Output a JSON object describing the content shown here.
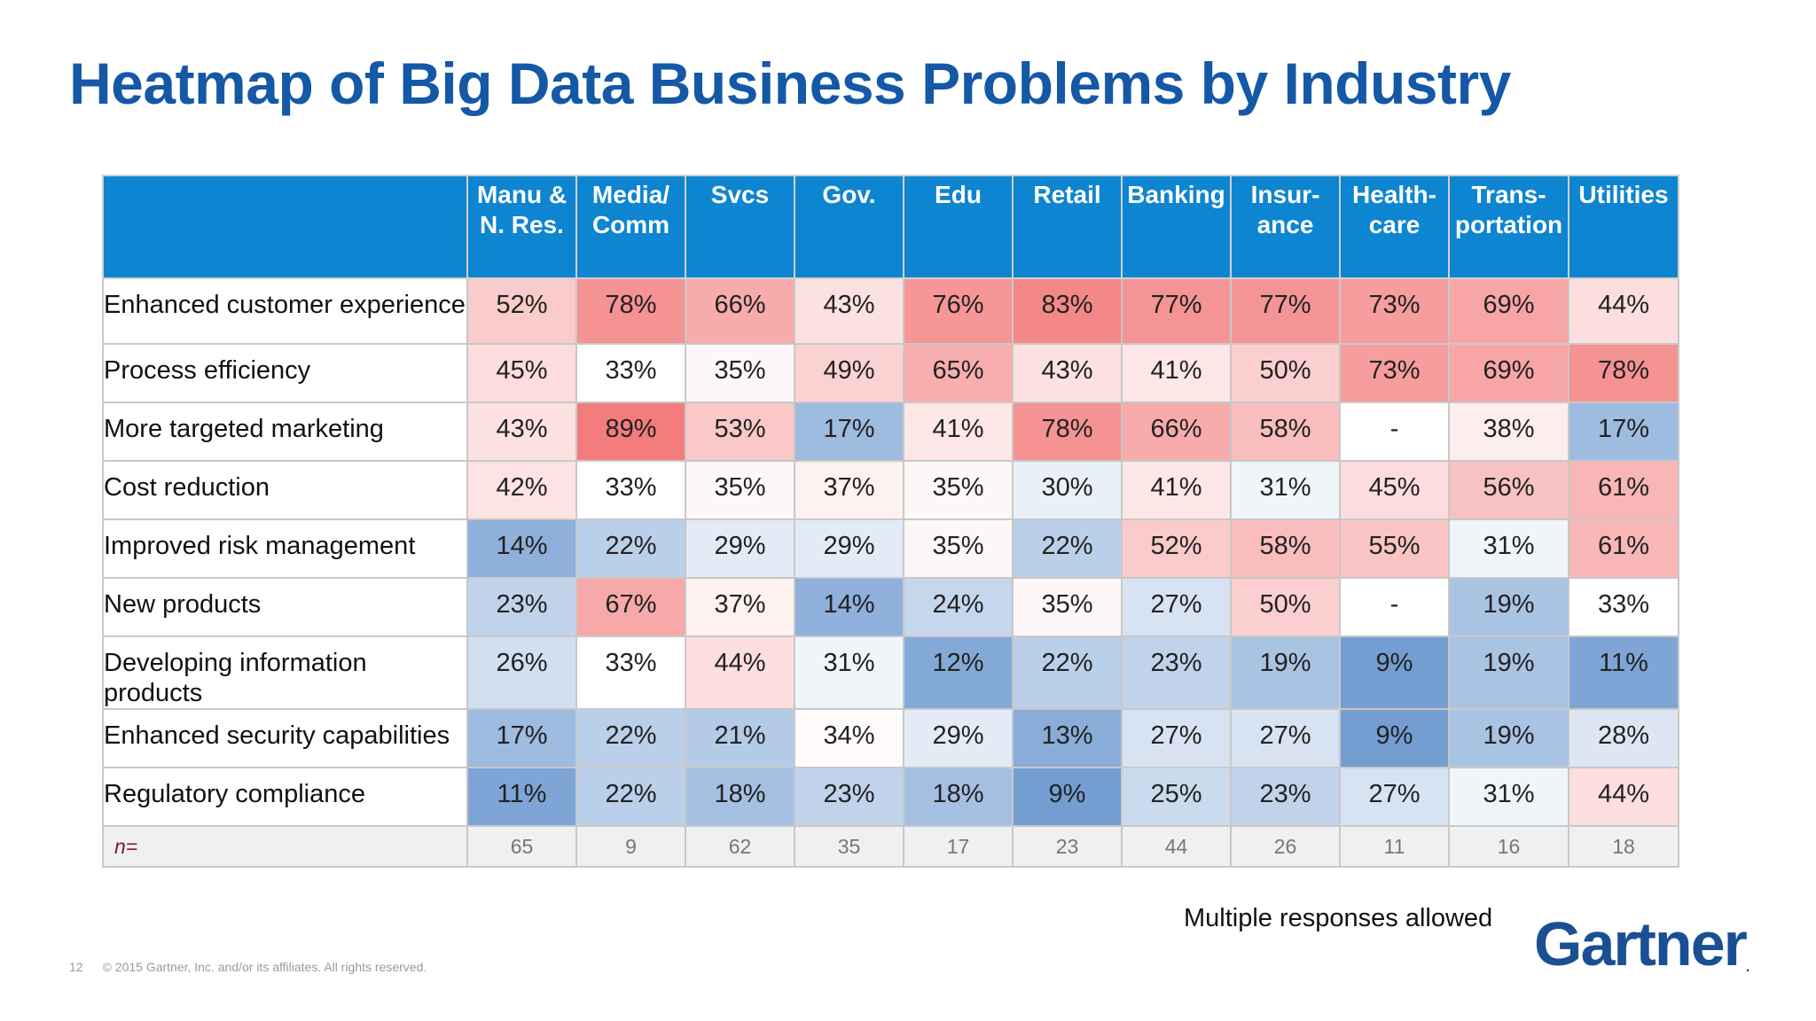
{
  "title": "Heatmap of Big Data Business Problems by Industry",
  "chart_data": {
    "type": "heatmap",
    "title": "Heatmap of Big Data Business Problems by Industry",
    "columns": [
      [
        "Manu &",
        "N. Res."
      ],
      [
        "Media/",
        "Comm"
      ],
      [
        "Svcs"
      ],
      [
        "Gov."
      ],
      [
        "Edu"
      ],
      [
        "Retail"
      ],
      [
        "Banking"
      ],
      [
        "Insur-",
        "ance"
      ],
      [
        "Health-",
        "care"
      ],
      [
        "Trans-",
        "portation"
      ],
      [
        "Utilities"
      ]
    ],
    "rows": [
      {
        "label": "Enhanced customer experience",
        "values": [
          52,
          78,
          66,
          43,
          76,
          83,
          77,
          77,
          73,
          69,
          44
        ]
      },
      {
        "label": "Process efficiency",
        "values": [
          45,
          33,
          35,
          49,
          65,
          43,
          41,
          50,
          73,
          69,
          78
        ]
      },
      {
        "label": "More targeted marketing",
        "values": [
          43,
          89,
          53,
          17,
          41,
          78,
          66,
          58,
          null,
          38,
          17
        ]
      },
      {
        "label": "Cost reduction",
        "values": [
          42,
          33,
          35,
          37,
          35,
          30,
          41,
          31,
          45,
          56,
          61
        ]
      },
      {
        "label": "Improved risk management",
        "values": [
          14,
          22,
          29,
          29,
          35,
          22,
          52,
          58,
          55,
          31,
          61
        ]
      },
      {
        "label": "New products",
        "values": [
          23,
          67,
          37,
          14,
          24,
          35,
          27,
          50,
          null,
          19,
          33
        ]
      },
      {
        "label": "Developing information products",
        "values": [
          26,
          33,
          44,
          31,
          12,
          22,
          23,
          19,
          9,
          19,
          11
        ]
      },
      {
        "label": "Enhanced security capabilities",
        "values": [
          17,
          22,
          21,
          34,
          29,
          13,
          27,
          27,
          9,
          19,
          28
        ]
      },
      {
        "label": "Regulatory compliance",
        "values": [
          11,
          22,
          18,
          23,
          18,
          9,
          25,
          23,
          27,
          31,
          44
        ]
      }
    ],
    "n_label": "n=",
    "n_values": [
      65,
      9,
      62,
      35,
      17,
      23,
      44,
      26,
      11,
      16,
      18
    ],
    "value_suffix": "%",
    "missing_text": "-",
    "color_scale": {
      "low": "#5f8fcb",
      "mid": "#ffffff",
      "high": "#f37a7a"
    }
  },
  "note": "Multiple responses allowed",
  "footer": {
    "page": "12",
    "copyright": "© 2015 Gartner, Inc. and/or its affiliates. All rights reserved."
  },
  "logo": {
    "text": "Gartner",
    "mark": "."
  }
}
